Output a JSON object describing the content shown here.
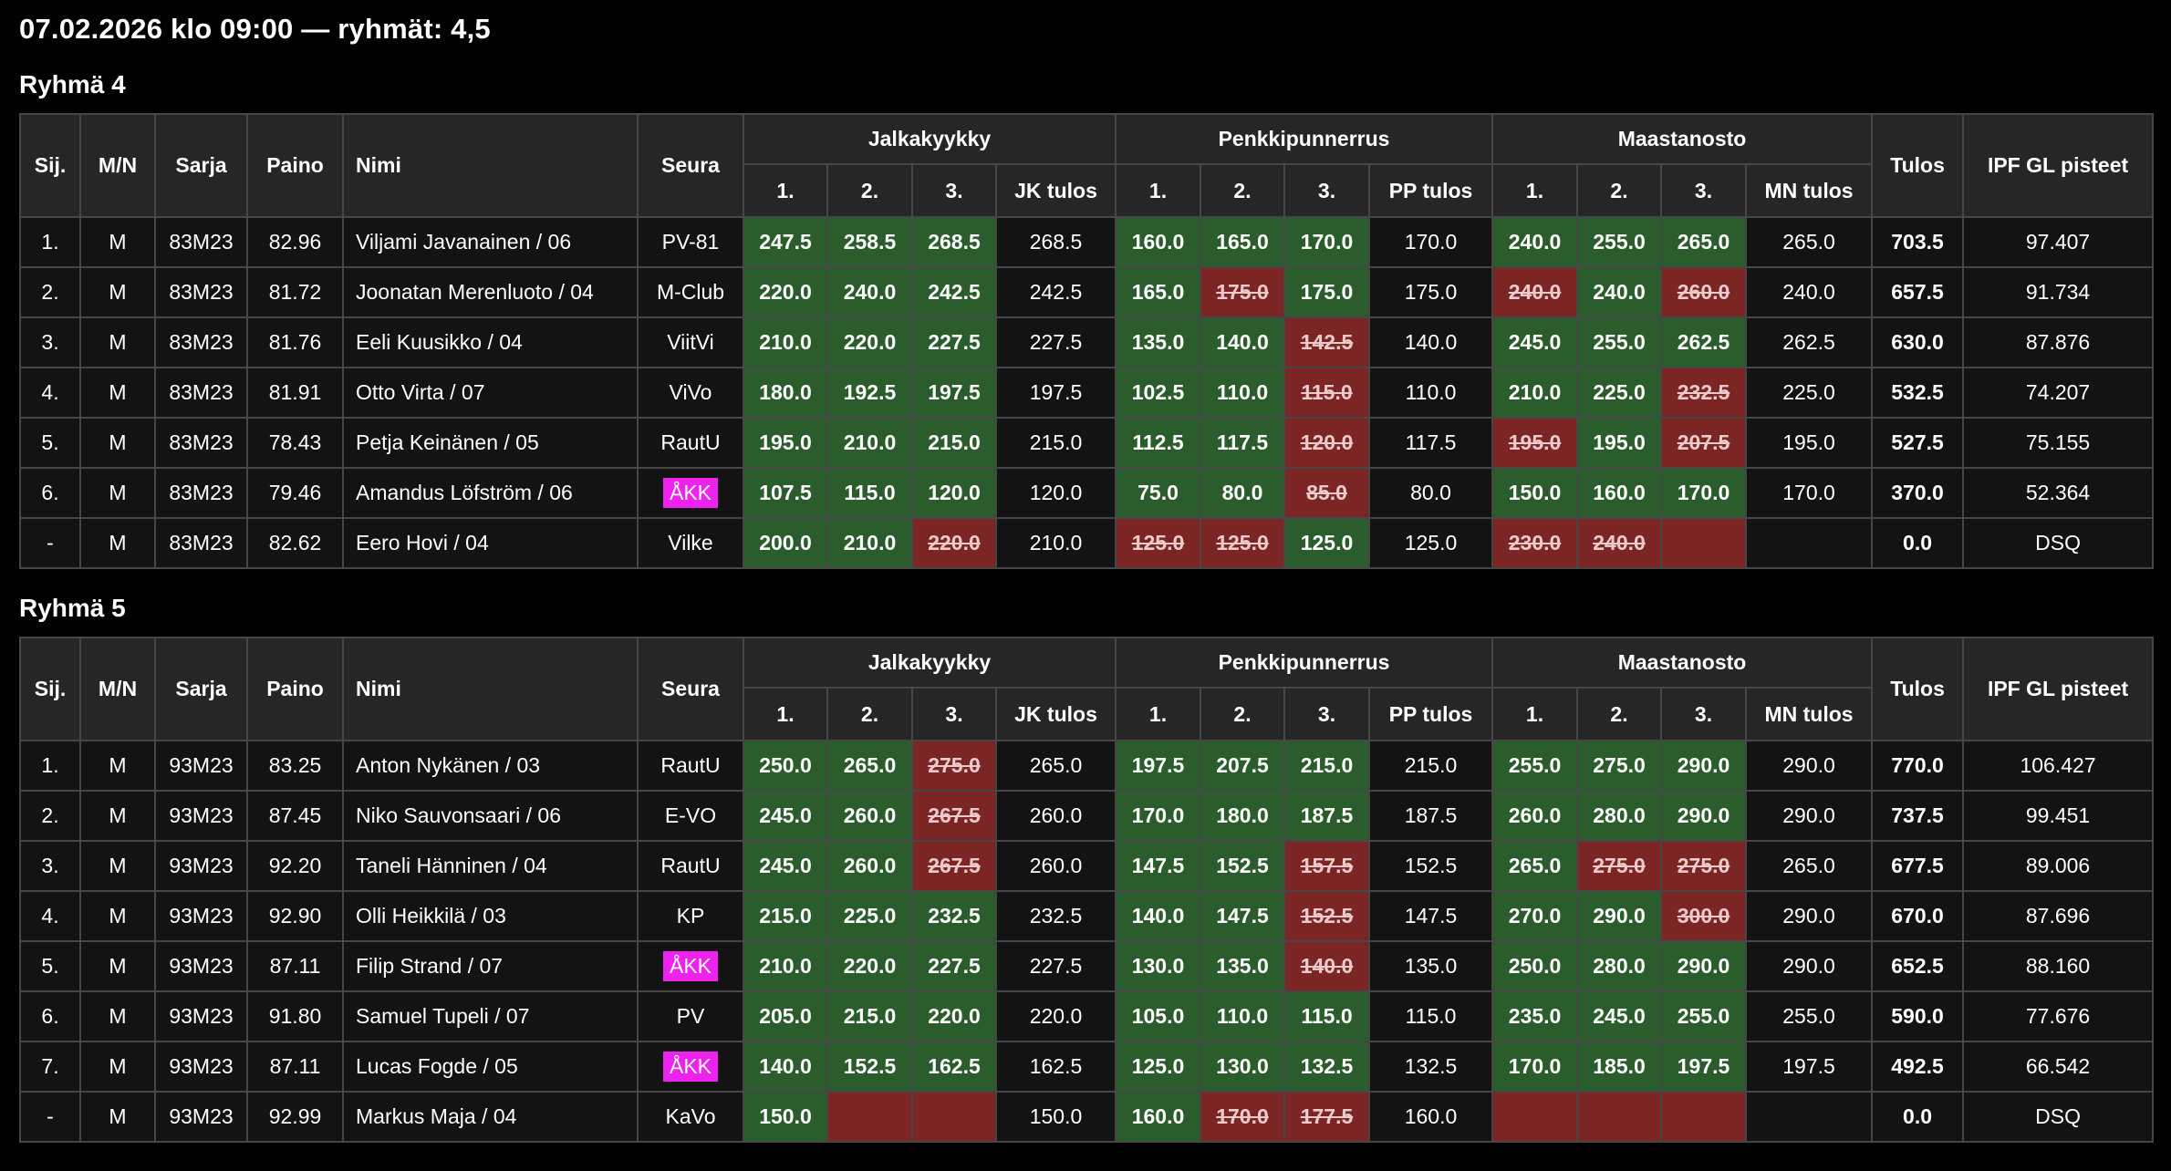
{
  "title": "07.02.2026 klo 09:00 — ryhmät: 4,5",
  "headers": {
    "sij": "Sij.",
    "mn": "M/N",
    "sarja": "Sarja",
    "paino": "Paino",
    "nimi": "Nimi",
    "seura": "Seura",
    "squat": "Jalkakyykky",
    "bench": "Penkkipunnerrus",
    "deadlift": "Maastanosto",
    "a1": "1.",
    "a2": "2.",
    "a3": "3.",
    "jk_tulos": "JK tulos",
    "pp_tulos": "PP tulos",
    "mn_tulos": "MN tulos",
    "tulos": "Tulos",
    "ipf": "IPF GL pisteet"
  },
  "colors": {
    "good_attempt": "#2b5d2c",
    "failed_attempt": "#7c2525",
    "failed_text": "#eacaca",
    "club_highlight": "#ee22ee",
    "header_bg": "#262626",
    "cell_bg": "#131313",
    "border": "#464646",
    "page_bg": "#000000",
    "text": "#ffffff"
  },
  "groups": [
    {
      "heading": "Ryhmä 4",
      "rows": [
        {
          "sij": "1.",
          "mn": "M",
          "sarja": "83M23",
          "paino": "82.96",
          "nimi": "Viljami Javanainen / 06",
          "seura": "PV-81",
          "seura_highlight": false,
          "squat": [
            [
              "247.5",
              "good"
            ],
            [
              "258.5",
              "good"
            ],
            [
              "268.5",
              "good"
            ]
          ],
          "squat_total": "268.5",
          "bench": [
            [
              "160.0",
              "good"
            ],
            [
              "165.0",
              "good"
            ],
            [
              "170.0",
              "good"
            ]
          ],
          "bench_total": "170.0",
          "deadlift": [
            [
              "240.0",
              "good"
            ],
            [
              "255.0",
              "good"
            ],
            [
              "265.0",
              "good"
            ]
          ],
          "deadlift_total": "265.0",
          "total": "703.5",
          "points": "97.407"
        },
        {
          "sij": "2.",
          "mn": "M",
          "sarja": "83M23",
          "paino": "81.72",
          "nimi": "Joonatan Merenluoto / 04",
          "seura": "M-Club",
          "seura_highlight": false,
          "squat": [
            [
              "220.0",
              "good"
            ],
            [
              "240.0",
              "good"
            ],
            [
              "242.5",
              "good"
            ]
          ],
          "squat_total": "242.5",
          "bench": [
            [
              "165.0",
              "good"
            ],
            [
              "175.0",
              "fail"
            ],
            [
              "175.0",
              "good"
            ]
          ],
          "bench_total": "175.0",
          "deadlift": [
            [
              "240.0",
              "fail"
            ],
            [
              "240.0",
              "good"
            ],
            [
              "260.0",
              "fail"
            ]
          ],
          "deadlift_total": "240.0",
          "total": "657.5",
          "points": "91.734"
        },
        {
          "sij": "3.",
          "mn": "M",
          "sarja": "83M23",
          "paino": "81.76",
          "nimi": "Eeli Kuusikko / 04",
          "seura": "ViitVi",
          "seura_highlight": false,
          "squat": [
            [
              "210.0",
              "good"
            ],
            [
              "220.0",
              "good"
            ],
            [
              "227.5",
              "good"
            ]
          ],
          "squat_total": "227.5",
          "bench": [
            [
              "135.0",
              "good"
            ],
            [
              "140.0",
              "good"
            ],
            [
              "142.5",
              "fail"
            ]
          ],
          "bench_total": "140.0",
          "deadlift": [
            [
              "245.0",
              "good"
            ],
            [
              "255.0",
              "good"
            ],
            [
              "262.5",
              "good"
            ]
          ],
          "deadlift_total": "262.5",
          "total": "630.0",
          "points": "87.876"
        },
        {
          "sij": "4.",
          "mn": "M",
          "sarja": "83M23",
          "paino": "81.91",
          "nimi": "Otto Virta / 07",
          "seura": "ViVo",
          "seura_highlight": false,
          "squat": [
            [
              "180.0",
              "good"
            ],
            [
              "192.5",
              "good"
            ],
            [
              "197.5",
              "good"
            ]
          ],
          "squat_total": "197.5",
          "bench": [
            [
              "102.5",
              "good"
            ],
            [
              "110.0",
              "good"
            ],
            [
              "115.0",
              "fail"
            ]
          ],
          "bench_total": "110.0",
          "deadlift": [
            [
              "210.0",
              "good"
            ],
            [
              "225.0",
              "good"
            ],
            [
              "232.5",
              "fail"
            ]
          ],
          "deadlift_total": "225.0",
          "total": "532.5",
          "points": "74.207"
        },
        {
          "sij": "5.",
          "mn": "M",
          "sarja": "83M23",
          "paino": "78.43",
          "nimi": "Petja Keinänen / 05",
          "seura": "RautU",
          "seura_highlight": false,
          "squat": [
            [
              "195.0",
              "good"
            ],
            [
              "210.0",
              "good"
            ],
            [
              "215.0",
              "good"
            ]
          ],
          "squat_total": "215.0",
          "bench": [
            [
              "112.5",
              "good"
            ],
            [
              "117.5",
              "good"
            ],
            [
              "120.0",
              "fail"
            ]
          ],
          "bench_total": "117.5",
          "deadlift": [
            [
              "195.0",
              "fail"
            ],
            [
              "195.0",
              "good"
            ],
            [
              "207.5",
              "fail"
            ]
          ],
          "deadlift_total": "195.0",
          "total": "527.5",
          "points": "75.155"
        },
        {
          "sij": "6.",
          "mn": "M",
          "sarja": "83M23",
          "paino": "79.46",
          "nimi": "Amandus Löfström / 06",
          "seura": "ÅKK",
          "seura_highlight": true,
          "squat": [
            [
              "107.5",
              "good"
            ],
            [
              "115.0",
              "good"
            ],
            [
              "120.0",
              "good"
            ]
          ],
          "squat_total": "120.0",
          "bench": [
            [
              "75.0",
              "good"
            ],
            [
              "80.0",
              "good"
            ],
            [
              "85.0",
              "fail"
            ]
          ],
          "bench_total": "80.0",
          "deadlift": [
            [
              "150.0",
              "good"
            ],
            [
              "160.0",
              "good"
            ],
            [
              "170.0",
              "good"
            ]
          ],
          "deadlift_total": "170.0",
          "total": "370.0",
          "points": "52.364"
        },
        {
          "sij": "-",
          "mn": "M",
          "sarja": "83M23",
          "paino": "82.62",
          "nimi": "Eero Hovi / 04",
          "seura": "Vilke",
          "seura_highlight": false,
          "squat": [
            [
              "200.0",
              "good"
            ],
            [
              "210.0",
              "good"
            ],
            [
              "220.0",
              "fail"
            ]
          ],
          "squat_total": "210.0",
          "bench": [
            [
              "125.0",
              "fail"
            ],
            [
              "125.0",
              "fail"
            ],
            [
              "125.0",
              "good"
            ]
          ],
          "bench_total": "125.0",
          "deadlift": [
            [
              "230.0",
              "fail"
            ],
            [
              "240.0",
              "fail"
            ],
            [
              "",
              "fail"
            ]
          ],
          "deadlift_total": "",
          "total": "0.0",
          "points": "DSQ"
        }
      ]
    },
    {
      "heading": "Ryhmä 5",
      "rows": [
        {
          "sij": "1.",
          "mn": "M",
          "sarja": "93M23",
          "paino": "83.25",
          "nimi": "Anton Nykänen / 03",
          "seura": "RautU",
          "seura_highlight": false,
          "squat": [
            [
              "250.0",
              "good"
            ],
            [
              "265.0",
              "good"
            ],
            [
              "275.0",
              "fail"
            ]
          ],
          "squat_total": "265.0",
          "bench": [
            [
              "197.5",
              "good"
            ],
            [
              "207.5",
              "good"
            ],
            [
              "215.0",
              "good"
            ]
          ],
          "bench_total": "215.0",
          "deadlift": [
            [
              "255.0",
              "good"
            ],
            [
              "275.0",
              "good"
            ],
            [
              "290.0",
              "good"
            ]
          ],
          "deadlift_total": "290.0",
          "total": "770.0",
          "points": "106.427"
        },
        {
          "sij": "2.",
          "mn": "M",
          "sarja": "93M23",
          "paino": "87.45",
          "nimi": "Niko Sauvonsaari / 06",
          "seura": "E-VO",
          "seura_highlight": false,
          "squat": [
            [
              "245.0",
              "good"
            ],
            [
              "260.0",
              "good"
            ],
            [
              "267.5",
              "fail"
            ]
          ],
          "squat_total": "260.0",
          "bench": [
            [
              "170.0",
              "good"
            ],
            [
              "180.0",
              "good"
            ],
            [
              "187.5",
              "good"
            ]
          ],
          "bench_total": "187.5",
          "deadlift": [
            [
              "260.0",
              "good"
            ],
            [
              "280.0",
              "good"
            ],
            [
              "290.0",
              "good"
            ]
          ],
          "deadlift_total": "290.0",
          "total": "737.5",
          "points": "99.451"
        },
        {
          "sij": "3.",
          "mn": "M",
          "sarja": "93M23",
          "paino": "92.20",
          "nimi": "Taneli Hänninen / 04",
          "seura": "RautU",
          "seura_highlight": false,
          "squat": [
            [
              "245.0",
              "good"
            ],
            [
              "260.0",
              "good"
            ],
            [
              "267.5",
              "fail"
            ]
          ],
          "squat_total": "260.0",
          "bench": [
            [
              "147.5",
              "good"
            ],
            [
              "152.5",
              "good"
            ],
            [
              "157.5",
              "fail"
            ]
          ],
          "bench_total": "152.5",
          "deadlift": [
            [
              "265.0",
              "good"
            ],
            [
              "275.0",
              "fail"
            ],
            [
              "275.0",
              "fail"
            ]
          ],
          "deadlift_total": "265.0",
          "total": "677.5",
          "points": "89.006"
        },
        {
          "sij": "4.",
          "mn": "M",
          "sarja": "93M23",
          "paino": "92.90",
          "nimi": "Olli Heikkilä / 03",
          "seura": "KP",
          "seura_highlight": false,
          "squat": [
            [
              "215.0",
              "good"
            ],
            [
              "225.0",
              "good"
            ],
            [
              "232.5",
              "good"
            ]
          ],
          "squat_total": "232.5",
          "bench": [
            [
              "140.0",
              "good"
            ],
            [
              "147.5",
              "good"
            ],
            [
              "152.5",
              "fail"
            ]
          ],
          "bench_total": "147.5",
          "deadlift": [
            [
              "270.0",
              "good"
            ],
            [
              "290.0",
              "good"
            ],
            [
              "300.0",
              "fail"
            ]
          ],
          "deadlift_total": "290.0",
          "total": "670.0",
          "points": "87.696"
        },
        {
          "sij": "5.",
          "mn": "M",
          "sarja": "93M23",
          "paino": "87.11",
          "nimi": "Filip Strand / 07",
          "seura": "ÅKK",
          "seura_highlight": true,
          "squat": [
            [
              "210.0",
              "good"
            ],
            [
              "220.0",
              "good"
            ],
            [
              "227.5",
              "good"
            ]
          ],
          "squat_total": "227.5",
          "bench": [
            [
              "130.0",
              "good"
            ],
            [
              "135.0",
              "good"
            ],
            [
              "140.0",
              "fail"
            ]
          ],
          "bench_total": "135.0",
          "deadlift": [
            [
              "250.0",
              "good"
            ],
            [
              "280.0",
              "good"
            ],
            [
              "290.0",
              "good"
            ]
          ],
          "deadlift_total": "290.0",
          "total": "652.5",
          "points": "88.160"
        },
        {
          "sij": "6.",
          "mn": "M",
          "sarja": "93M23",
          "paino": "91.80",
          "nimi": "Samuel Tupeli / 07",
          "seura": "PV",
          "seura_highlight": false,
          "squat": [
            [
              "205.0",
              "good"
            ],
            [
              "215.0",
              "good"
            ],
            [
              "220.0",
              "good"
            ]
          ],
          "squat_total": "220.0",
          "bench": [
            [
              "105.0",
              "good"
            ],
            [
              "110.0",
              "good"
            ],
            [
              "115.0",
              "good"
            ]
          ],
          "bench_total": "115.0",
          "deadlift": [
            [
              "235.0",
              "good"
            ],
            [
              "245.0",
              "good"
            ],
            [
              "255.0",
              "good"
            ]
          ],
          "deadlift_total": "255.0",
          "total": "590.0",
          "points": "77.676"
        },
        {
          "sij": "7.",
          "mn": "M",
          "sarja": "93M23",
          "paino": "87.11",
          "nimi": "Lucas Fogde / 05",
          "seura": "ÅKK",
          "seura_highlight": true,
          "squat": [
            [
              "140.0",
              "good"
            ],
            [
              "152.5",
              "good"
            ],
            [
              "162.5",
              "good"
            ]
          ],
          "squat_total": "162.5",
          "bench": [
            [
              "125.0",
              "good"
            ],
            [
              "130.0",
              "good"
            ],
            [
              "132.5",
              "good"
            ]
          ],
          "bench_total": "132.5",
          "deadlift": [
            [
              "170.0",
              "good"
            ],
            [
              "185.0",
              "good"
            ],
            [
              "197.5",
              "good"
            ]
          ],
          "deadlift_total": "197.5",
          "total": "492.5",
          "points": "66.542"
        },
        {
          "sij": "-",
          "mn": "M",
          "sarja": "93M23",
          "paino": "92.99",
          "nimi": "Markus Maja / 04",
          "seura": "KaVo",
          "seura_highlight": false,
          "squat": [
            [
              "150.0",
              "good"
            ],
            [
              "",
              "fail"
            ],
            [
              "",
              "fail"
            ]
          ],
          "squat_total": "150.0",
          "bench": [
            [
              "160.0",
              "good"
            ],
            [
              "170.0",
              "fail"
            ],
            [
              "177.5",
              "fail"
            ]
          ],
          "bench_total": "160.0",
          "deadlift": [
            [
              "",
              "fail"
            ],
            [
              "",
              "fail"
            ],
            [
              "",
              "fail"
            ]
          ],
          "deadlift_total": "",
          "total": "0.0",
          "points": "DSQ"
        }
      ]
    }
  ]
}
